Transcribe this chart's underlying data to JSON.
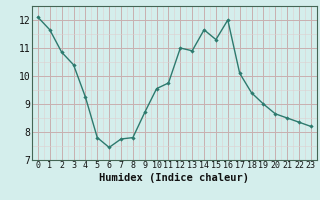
{
  "x": [
    0,
    1,
    2,
    3,
    4,
    5,
    6,
    7,
    8,
    9,
    10,
    11,
    12,
    13,
    14,
    15,
    16,
    17,
    18,
    19,
    20,
    21,
    22,
    23
  ],
  "y": [
    12.1,
    11.65,
    10.85,
    10.4,
    9.25,
    7.8,
    7.45,
    7.75,
    7.8,
    8.7,
    9.55,
    9.75,
    11.0,
    10.9,
    11.65,
    11.3,
    12.0,
    10.1,
    9.4,
    9.0,
    8.65,
    8.5,
    8.35,
    8.2
  ],
  "xlabel": "Humidex (Indice chaleur)",
  "ylim": [
    7,
    12.5
  ],
  "xlim": [
    -0.5,
    23.5
  ],
  "yticks": [
    7,
    8,
    9,
    10,
    11,
    12
  ],
  "xticks": [
    0,
    1,
    2,
    3,
    4,
    5,
    6,
    7,
    8,
    9,
    10,
    11,
    12,
    13,
    14,
    15,
    16,
    17,
    18,
    19,
    20,
    21,
    22,
    23
  ],
  "line_color": "#2d7a6e",
  "marker_color": "#2d7a6e",
  "bg_color": "#d4eeec",
  "grid_major_color": "#c8b0b0",
  "grid_minor_color": "#ddd0d0",
  "xlabel_fontsize": 7.5,
  "tick_fontsize": 6.5,
  "ylabel_fontsize": 7
}
